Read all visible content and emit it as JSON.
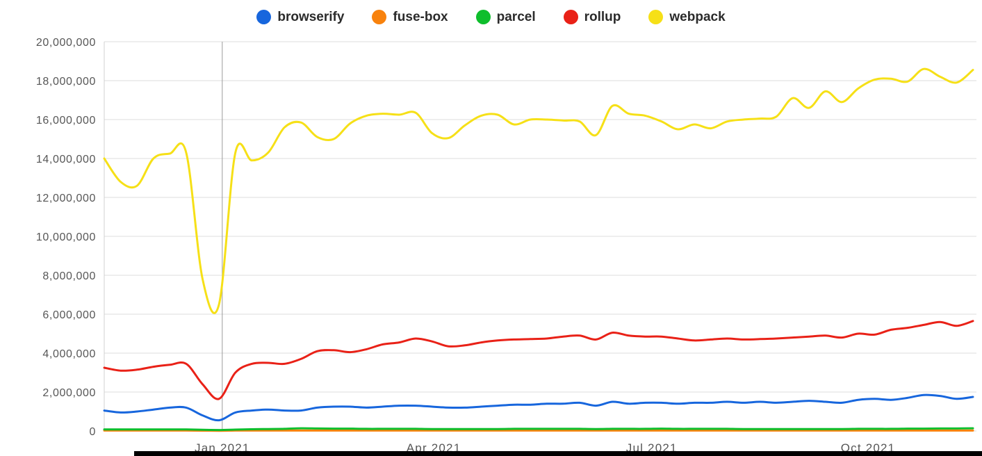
{
  "chart_data": {
    "type": "line",
    "title": "",
    "xlabel": "",
    "ylabel": "",
    "legend_position": "top-center",
    "grid": "horizontal gridlines every 2,000,000; one vertical year gridline at Jan 2021; left axis line",
    "x_axis": {
      "total_weeks": 53,
      "tick_labels": [
        "Jan 2021",
        "Apr 2021",
        "Jul 2021",
        "Oct 2021"
      ],
      "tick_week_positions": [
        7.2,
        20.1,
        33.4,
        46.6
      ],
      "year_line_week": 7.2
    },
    "y_axis": {
      "min_millions": 0,
      "max_millions": 20,
      "step_millions": 2,
      "ticks_millions": [
        0,
        2,
        4,
        6,
        8,
        10,
        12,
        14,
        16,
        18,
        20
      ],
      "tick_labels": [
        "0",
        "2,000,000",
        "4,000,000",
        "6,000,000",
        "8,000,000",
        "10,000,000",
        "12,000,000",
        "14,000,000",
        "16,000,000",
        "18,000,000",
        "20,000,000"
      ]
    },
    "series": [
      {
        "name": "browserify",
        "color": "#1766dd",
        "values_millions": [
          1.05,
          0.95,
          1.0,
          1.1,
          1.2,
          1.2,
          0.8,
          0.55,
          0.95,
          1.05,
          1.1,
          1.05,
          1.05,
          1.2,
          1.25,
          1.25,
          1.2,
          1.25,
          1.3,
          1.3,
          1.25,
          1.2,
          1.2,
          1.25,
          1.3,
          1.35,
          1.35,
          1.4,
          1.4,
          1.45,
          1.3,
          1.5,
          1.4,
          1.45,
          1.45,
          1.4,
          1.45,
          1.45,
          1.5,
          1.45,
          1.5,
          1.45,
          1.5,
          1.55,
          1.5,
          1.45,
          1.6,
          1.65,
          1.6,
          1.7,
          1.85,
          1.8,
          1.65,
          1.75
        ]
      },
      {
        "name": "fuse-box",
        "color": "#f8820d",
        "values_millions": [
          0.02,
          0.02,
          0.02,
          0.02,
          0.02,
          0.02,
          0.015,
          0.01,
          0.02,
          0.02,
          0.02,
          0.02,
          0.02,
          0.02,
          0.02,
          0.02,
          0.02,
          0.02,
          0.02,
          0.02,
          0.02,
          0.02,
          0.02,
          0.02,
          0.02,
          0.02,
          0.02,
          0.02,
          0.02,
          0.02,
          0.02,
          0.02,
          0.02,
          0.02,
          0.02,
          0.02,
          0.02,
          0.02,
          0.02,
          0.02,
          0.02,
          0.02,
          0.02,
          0.02,
          0.02,
          0.02,
          0.02,
          0.02,
          0.02,
          0.02,
          0.02,
          0.02,
          0.02,
          0.02
        ]
      },
      {
        "name": "parcel",
        "color": "#0ebe2c",
        "values_millions": [
          0.08,
          0.08,
          0.08,
          0.08,
          0.08,
          0.08,
          0.06,
          0.05,
          0.07,
          0.09,
          0.1,
          0.11,
          0.14,
          0.13,
          0.12,
          0.12,
          0.11,
          0.11,
          0.11,
          0.11,
          0.1,
          0.1,
          0.1,
          0.1,
          0.1,
          0.11,
          0.11,
          0.11,
          0.11,
          0.11,
          0.1,
          0.11,
          0.11,
          0.11,
          0.12,
          0.11,
          0.11,
          0.11,
          0.11,
          0.1,
          0.1,
          0.1,
          0.1,
          0.1,
          0.1,
          0.1,
          0.11,
          0.11,
          0.11,
          0.12,
          0.12,
          0.13,
          0.13,
          0.14
        ]
      },
      {
        "name": "rollup",
        "color": "#e92117",
        "values_millions": [
          3.25,
          3.1,
          3.15,
          3.3,
          3.4,
          3.45,
          2.4,
          1.65,
          3.0,
          3.45,
          3.5,
          3.45,
          3.7,
          4.1,
          4.15,
          4.05,
          4.2,
          4.45,
          4.55,
          4.75,
          4.6,
          4.35,
          4.4,
          4.55,
          4.65,
          4.7,
          4.72,
          4.75,
          4.85,
          4.9,
          4.7,
          5.05,
          4.9,
          4.85,
          4.85,
          4.75,
          4.65,
          4.7,
          4.75,
          4.7,
          4.72,
          4.75,
          4.8,
          4.85,
          4.9,
          4.8,
          5.0,
          4.95,
          5.2,
          5.3,
          5.45,
          5.6,
          5.4,
          5.65
        ]
      },
      {
        "name": "webpack",
        "color": "#f6e017",
        "values_millions": [
          14.0,
          12.8,
          12.6,
          14.0,
          14.25,
          14.3,
          7.8,
          6.5,
          14.3,
          13.9,
          14.3,
          15.6,
          15.85,
          15.1,
          15.0,
          15.8,
          16.2,
          16.3,
          16.25,
          16.35,
          15.3,
          15.05,
          15.7,
          16.2,
          16.25,
          15.75,
          16.0,
          16.0,
          15.95,
          15.9,
          15.2,
          16.7,
          16.3,
          16.2,
          15.9,
          15.5,
          15.75,
          15.55,
          15.9,
          16.0,
          16.05,
          16.15,
          17.1,
          16.6,
          17.45,
          16.9,
          17.6,
          18.05,
          18.1,
          17.95,
          18.6,
          18.2,
          17.9,
          18.55
        ]
      }
    ]
  }
}
